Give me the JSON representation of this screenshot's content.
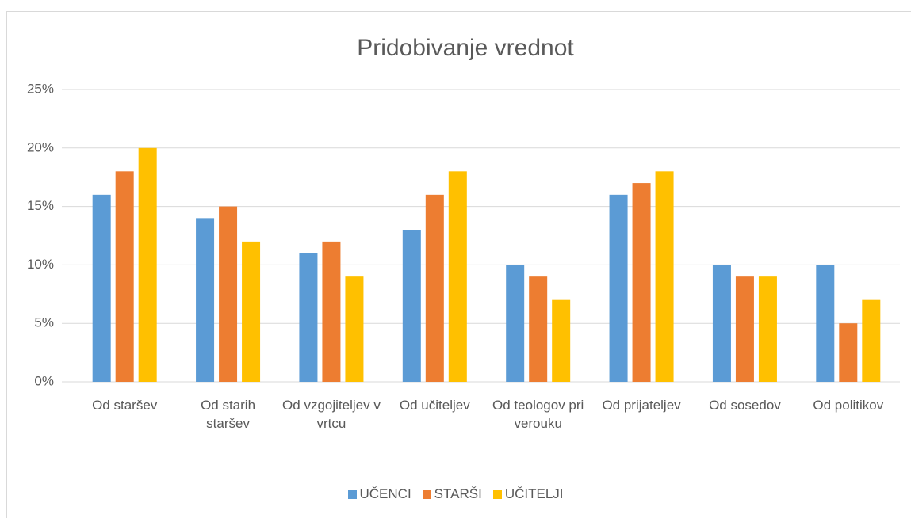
{
  "chart_data": {
    "type": "bar",
    "title": "Pridobivanje vrednot",
    "categories": [
      "Od staršev",
      "Od starih staršev",
      "Od vzgojiteljev v vrtcu",
      "Od učiteljev",
      "Od teologov pri verouku",
      "Od prijateljev",
      "Od sosedov",
      "Od politikov"
    ],
    "series": [
      {
        "name": "UČENCI",
        "color": "#5b9bd5",
        "values": [
          16,
          14,
          11,
          13,
          10,
          16,
          10,
          10
        ]
      },
      {
        "name": "STARŠI",
        "color": "#ed7d31",
        "values": [
          18,
          15,
          12,
          16,
          9,
          17,
          9,
          5
        ]
      },
      {
        "name": "UČITELJI",
        "color": "#ffc000",
        "values": [
          20,
          12,
          9,
          18,
          7,
          18,
          9,
          7
        ]
      }
    ],
    "ylim": [
      0,
      25
    ],
    "yticks": [
      {
        "value": 0,
        "label": "0%"
      },
      {
        "value": 5,
        "label": "5%"
      },
      {
        "value": 10,
        "label": "10%"
      },
      {
        "value": 15,
        "label": "15%"
      },
      {
        "value": 20,
        "label": "20%"
      },
      {
        "value": 25,
        "label": "25%"
      }
    ],
    "grid": true,
    "legend": "bottom"
  }
}
